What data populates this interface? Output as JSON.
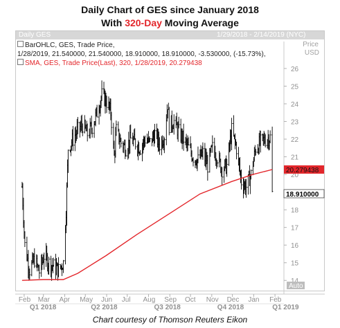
{
  "title": {
    "line1": "Daily Chart of GES since January 2018",
    "line2_pre": "With ",
    "line2_accent": "320-Day",
    "line2_post": " Moving Average"
  },
  "panel": {
    "symbol": "Daily GES",
    "date_range": "1/29/2018 - 2/14/2019 (NYC)",
    "price_label": "Price",
    "currency": "USD",
    "auto_button": "Auto"
  },
  "legend": {
    "ohlc_line1": "BarOHLC, GES, Trade Price,",
    "ohlc_line2": "1/28/2019, 21.540000, 21.540000, 18.910000, 18.910000, -3.530000, (-15.73%),",
    "sma_line": "SMA, GES, Trade Price(Last), 320, 1/28/2019, 20.279438"
  },
  "colors": {
    "price_bars": "#000000",
    "sma_line": "#e3262b",
    "header_bar": "#d7d7d7",
    "tag_red": "#e3262b"
  },
  "chart_data": {
    "type": "line",
    "y_ticks": [
      14,
      15,
      16,
      17,
      18,
      19,
      20,
      21,
      22,
      23,
      24,
      25,
      26
    ],
    "ylim": [
      13.5,
      26.9
    ],
    "month_labels": [
      "Feb",
      "Mar",
      "Apr",
      "May",
      "Jun",
      "Jul",
      "Aug",
      "Sep",
      "Oct",
      "Nov",
      "Dec",
      "Jan",
      "Feb"
    ],
    "quarter_labels": [
      "Q1 2018",
      "Q2 2018",
      "Q3 2018",
      "Q4 2018",
      "Q1 2019"
    ],
    "last_price": {
      "value": 18.91,
      "label": "18.910000"
    },
    "sma_last": {
      "value": 20.279438,
      "label": "20.279438"
    },
    "series": [
      {
        "name": "BarOHLC",
        "style": "ohlc",
        "points": [
          [
            "2018-01-29",
            19.3
          ],
          [
            "2018-02-02",
            16.0
          ],
          [
            "2018-02-09",
            14.6
          ],
          [
            "2018-02-16",
            15.2
          ],
          [
            "2018-02-23",
            14.5
          ],
          [
            "2018-03-02",
            15.4
          ],
          [
            "2018-03-09",
            15.0
          ],
          [
            "2018-03-16",
            14.8
          ],
          [
            "2018-03-23",
            14.6
          ],
          [
            "2018-03-30",
            15.0
          ],
          [
            "2018-04-03",
            18.0
          ],
          [
            "2018-04-06",
            21.5
          ],
          [
            "2018-04-13",
            22.0
          ],
          [
            "2018-04-20",
            22.5
          ],
          [
            "2018-04-27",
            22.8
          ],
          [
            "2018-05-04",
            22.3
          ],
          [
            "2018-05-11",
            22.7
          ],
          [
            "2018-05-18",
            23.5
          ],
          [
            "2018-05-25",
            24.5
          ],
          [
            "2018-05-31",
            24.2
          ],
          [
            "2018-06-07",
            23.5
          ],
          [
            "2018-06-12",
            21.0
          ],
          [
            "2018-06-15",
            22.5
          ],
          [
            "2018-06-22",
            21.8
          ],
          [
            "2018-06-29",
            21.5
          ],
          [
            "2018-07-06",
            22.0
          ],
          [
            "2018-07-13",
            21.8
          ],
          [
            "2018-07-20",
            21.5
          ],
          [
            "2018-07-27",
            22.0
          ],
          [
            "2018-08-03",
            21.8
          ],
          [
            "2018-08-10",
            22.3
          ],
          [
            "2018-08-17",
            21.7
          ],
          [
            "2018-08-24",
            22.2
          ],
          [
            "2018-08-29",
            24.0
          ],
          [
            "2018-08-31",
            22.8
          ],
          [
            "2018-09-07",
            23.0
          ],
          [
            "2018-09-14",
            22.4
          ],
          [
            "2018-09-21",
            22.0
          ],
          [
            "2018-09-28",
            21.5
          ],
          [
            "2018-10-05",
            21.0
          ],
          [
            "2018-10-12",
            20.8
          ],
          [
            "2018-10-19",
            21.2
          ],
          [
            "2018-10-26",
            20.5
          ],
          [
            "2018-11-02",
            21.5
          ],
          [
            "2018-11-09",
            21.0
          ],
          [
            "2018-11-16",
            20.3
          ],
          [
            "2018-11-23",
            20.5
          ],
          [
            "2018-11-30",
            22.5
          ],
          [
            "2018-12-07",
            21.5
          ],
          [
            "2018-12-14",
            19.6
          ],
          [
            "2018-12-21",
            19.3
          ],
          [
            "2018-12-28",
            20.0
          ],
          [
            "2019-01-04",
            21.5
          ],
          [
            "2019-01-11",
            21.8
          ],
          [
            "2019-01-18",
            22.0
          ],
          [
            "2019-01-25",
            22.1
          ],
          [
            "2019-01-28",
            18.91
          ]
        ]
      },
      {
        "name": "SMA",
        "style": "line",
        "points": [
          [
            "2018-01-29",
            14.0
          ],
          [
            "2018-03-01",
            14.05
          ],
          [
            "2018-03-30",
            14.05
          ],
          [
            "2018-04-20",
            14.4
          ],
          [
            "2018-05-31",
            15.4
          ],
          [
            "2018-07-15",
            16.6
          ],
          [
            "2018-09-01",
            17.8
          ],
          [
            "2018-10-15",
            18.9
          ],
          [
            "2018-11-30",
            19.6
          ],
          [
            "2018-12-31",
            20.0
          ],
          [
            "2019-01-28",
            20.28
          ]
        ]
      }
    ]
  },
  "footer": "Chart courtesy of Thomson Reuters Eikon"
}
